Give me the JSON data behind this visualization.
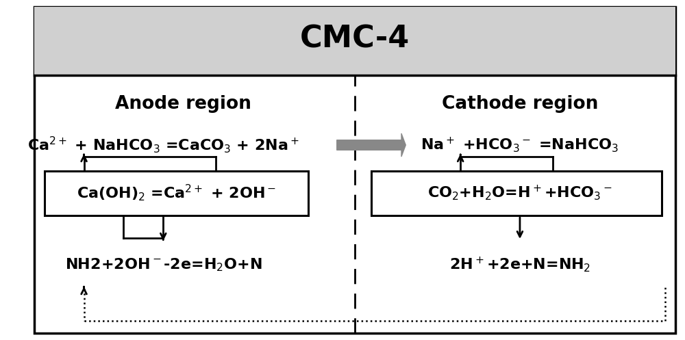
{
  "title": "CMC-4",
  "title_fontsize": 32,
  "title_fontweight": "bold",
  "anode_label": "Anode region",
  "cathode_label": "Cathode region",
  "region_fontsize": 19,
  "region_fontweight": "bold",
  "anode_eq1": "Ca$^{2+}$ + NaHCO$_3$ =CaCO$_3$ + 2Na$^+$",
  "anode_box_eq": "Ca(OH)$_2$ =Ca$^{2+}$ + 2OH$^-$",
  "anode_eq2": "NH2+2OH$^-$-2e=H$_2$O+N",
  "cathode_eq1": "Na$^+$ +HCO$_3$$^-$ =NaHCO$_3$",
  "cathode_box_eq": "CO$_2$+H$_2$O=H$^+$+HCO$_3$$^-$",
  "cathode_eq2": "2H$^+$+2e+N=NH$_2$",
  "eq_fontsize": 16,
  "eq_fontweight": "bold",
  "bg_color": "#ffffff",
  "header_bg": "#d0d0d0",
  "box_color": "#000000",
  "text_color": "#000000",
  "arrow_color": "#888888",
  "fig_width": 10.0,
  "fig_height": 4.97,
  "dpi": 100
}
